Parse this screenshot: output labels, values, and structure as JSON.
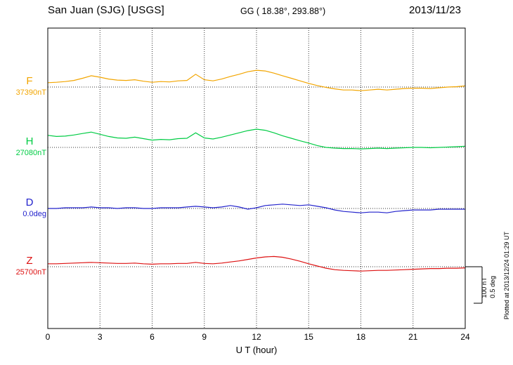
{
  "header": {
    "station": "San Juan (SJG)  [USGS]",
    "coords": "GG ( 18.38°, 293.88°)",
    "date": "2013/11/23"
  },
  "right_margin": {
    "plotted_at": "Plotted at 2013/12/24 01:29 UT",
    "scale_nt": "100 nT",
    "scale_deg": "0.5 deg"
  },
  "chart_data": {
    "type": "line",
    "title": "San Juan (SJG) [USGS] magnetogram 2013/11/23",
    "xlabel": "U T (hour)",
    "xlim": [
      0,
      24
    ],
    "x_ticks": [
      0,
      3,
      6,
      9,
      12,
      15,
      18,
      21,
      24
    ],
    "grid": "dotted vertical lines at 3-hour ticks; dotted horizontal baseline per trace",
    "legend_position": "left margin, per-trace colored labels",
    "scale_bar": {
      "nT_per_division": 100,
      "deg_per_division": 0.5
    },
    "x_hours": [
      0,
      0.5,
      1,
      1.5,
      2,
      2.5,
      3,
      3.5,
      4,
      4.5,
      5,
      5.5,
      6,
      6.5,
      7,
      7.5,
      8,
      8.5,
      9,
      9.5,
      10,
      10.5,
      11,
      11.5,
      12,
      12.5,
      13,
      13.5,
      14,
      14.5,
      15,
      15.5,
      16,
      16.5,
      17,
      17.5,
      18,
      18.5,
      19,
      19.5,
      20,
      20.5,
      21,
      21.5,
      22,
      22.5,
      23,
      23.5,
      24
    ],
    "series": [
      {
        "id": "F",
        "label": "F",
        "baseline_label": "37390nT",
        "baseline_value": 37390,
        "unit": "nT",
        "color": "#f2a500",
        "offsets": [
          12,
          13,
          15,
          18,
          24,
          31,
          27,
          22,
          19,
          18,
          20,
          16,
          13,
          15,
          14,
          17,
          18,
          35,
          20,
          17,
          22,
          29,
          35,
          42,
          46,
          44,
          38,
          31,
          24,
          17,
          10,
          4,
          -1,
          -5,
          -8,
          -8,
          -10,
          -8,
          -6,
          -8,
          -6,
          -4,
          -3,
          -3,
          -4,
          -2,
          0,
          1,
          3
        ]
      },
      {
        "id": "H",
        "label": "H",
        "baseline_label": "27080nT",
        "baseline_value": 27080,
        "unit": "nT",
        "color": "#00cc44",
        "offsets": [
          33,
          30,
          31,
          34,
          38,
          42,
          36,
          30,
          26,
          25,
          28,
          24,
          20,
          22,
          21,
          24,
          25,
          40,
          26,
          23,
          28,
          34,
          40,
          46,
          50,
          47,
          40,
          32,
          25,
          18,
          12,
          5,
          0,
          -2,
          -3,
          -3,
          -4,
          -3,
          -2,
          -3,
          -2,
          -1,
          0,
          0,
          -1,
          0,
          1,
          2,
          3
        ]
      },
      {
        "id": "D",
        "label": "D",
        "baseline_label": "0.0deg",
        "baseline_value": 0.0,
        "unit": "deg",
        "color": "#2222cc",
        "offsets": [
          0.0,
          0.0,
          0.01,
          0.01,
          0.01,
          0.02,
          0.01,
          0.01,
          0.0,
          0.01,
          0.01,
          0.0,
          0.0,
          0.01,
          0.01,
          0.01,
          0.02,
          0.03,
          0.02,
          0.01,
          0.02,
          0.04,
          0.02,
          -0.01,
          0.01,
          0.04,
          0.05,
          0.06,
          0.05,
          0.04,
          0.05,
          0.03,
          0.01,
          -0.02,
          -0.04,
          -0.05,
          -0.06,
          -0.05,
          -0.05,
          -0.06,
          -0.04,
          -0.03,
          -0.02,
          -0.02,
          -0.02,
          -0.01,
          -0.01,
          -0.01,
          -0.01
        ]
      },
      {
        "id": "Z",
        "label": "Z",
        "baseline_label": "25700nT",
        "baseline_value": 25700,
        "unit": "nT",
        "color": "#dd1111",
        "offsets": [
          8,
          8,
          9,
          10,
          11,
          12,
          11,
          10,
          9,
          9,
          10,
          8,
          7,
          8,
          8,
          9,
          9,
          12,
          9,
          8,
          10,
          13,
          16,
          20,
          24,
          27,
          28,
          26,
          21,
          15,
          8,
          2,
          -4,
          -8,
          -10,
          -11,
          -12,
          -11,
          -10,
          -10,
          -9,
          -8,
          -7,
          -6,
          -5,
          -5,
          -4,
          -4,
          -3
        ]
      }
    ]
  }
}
